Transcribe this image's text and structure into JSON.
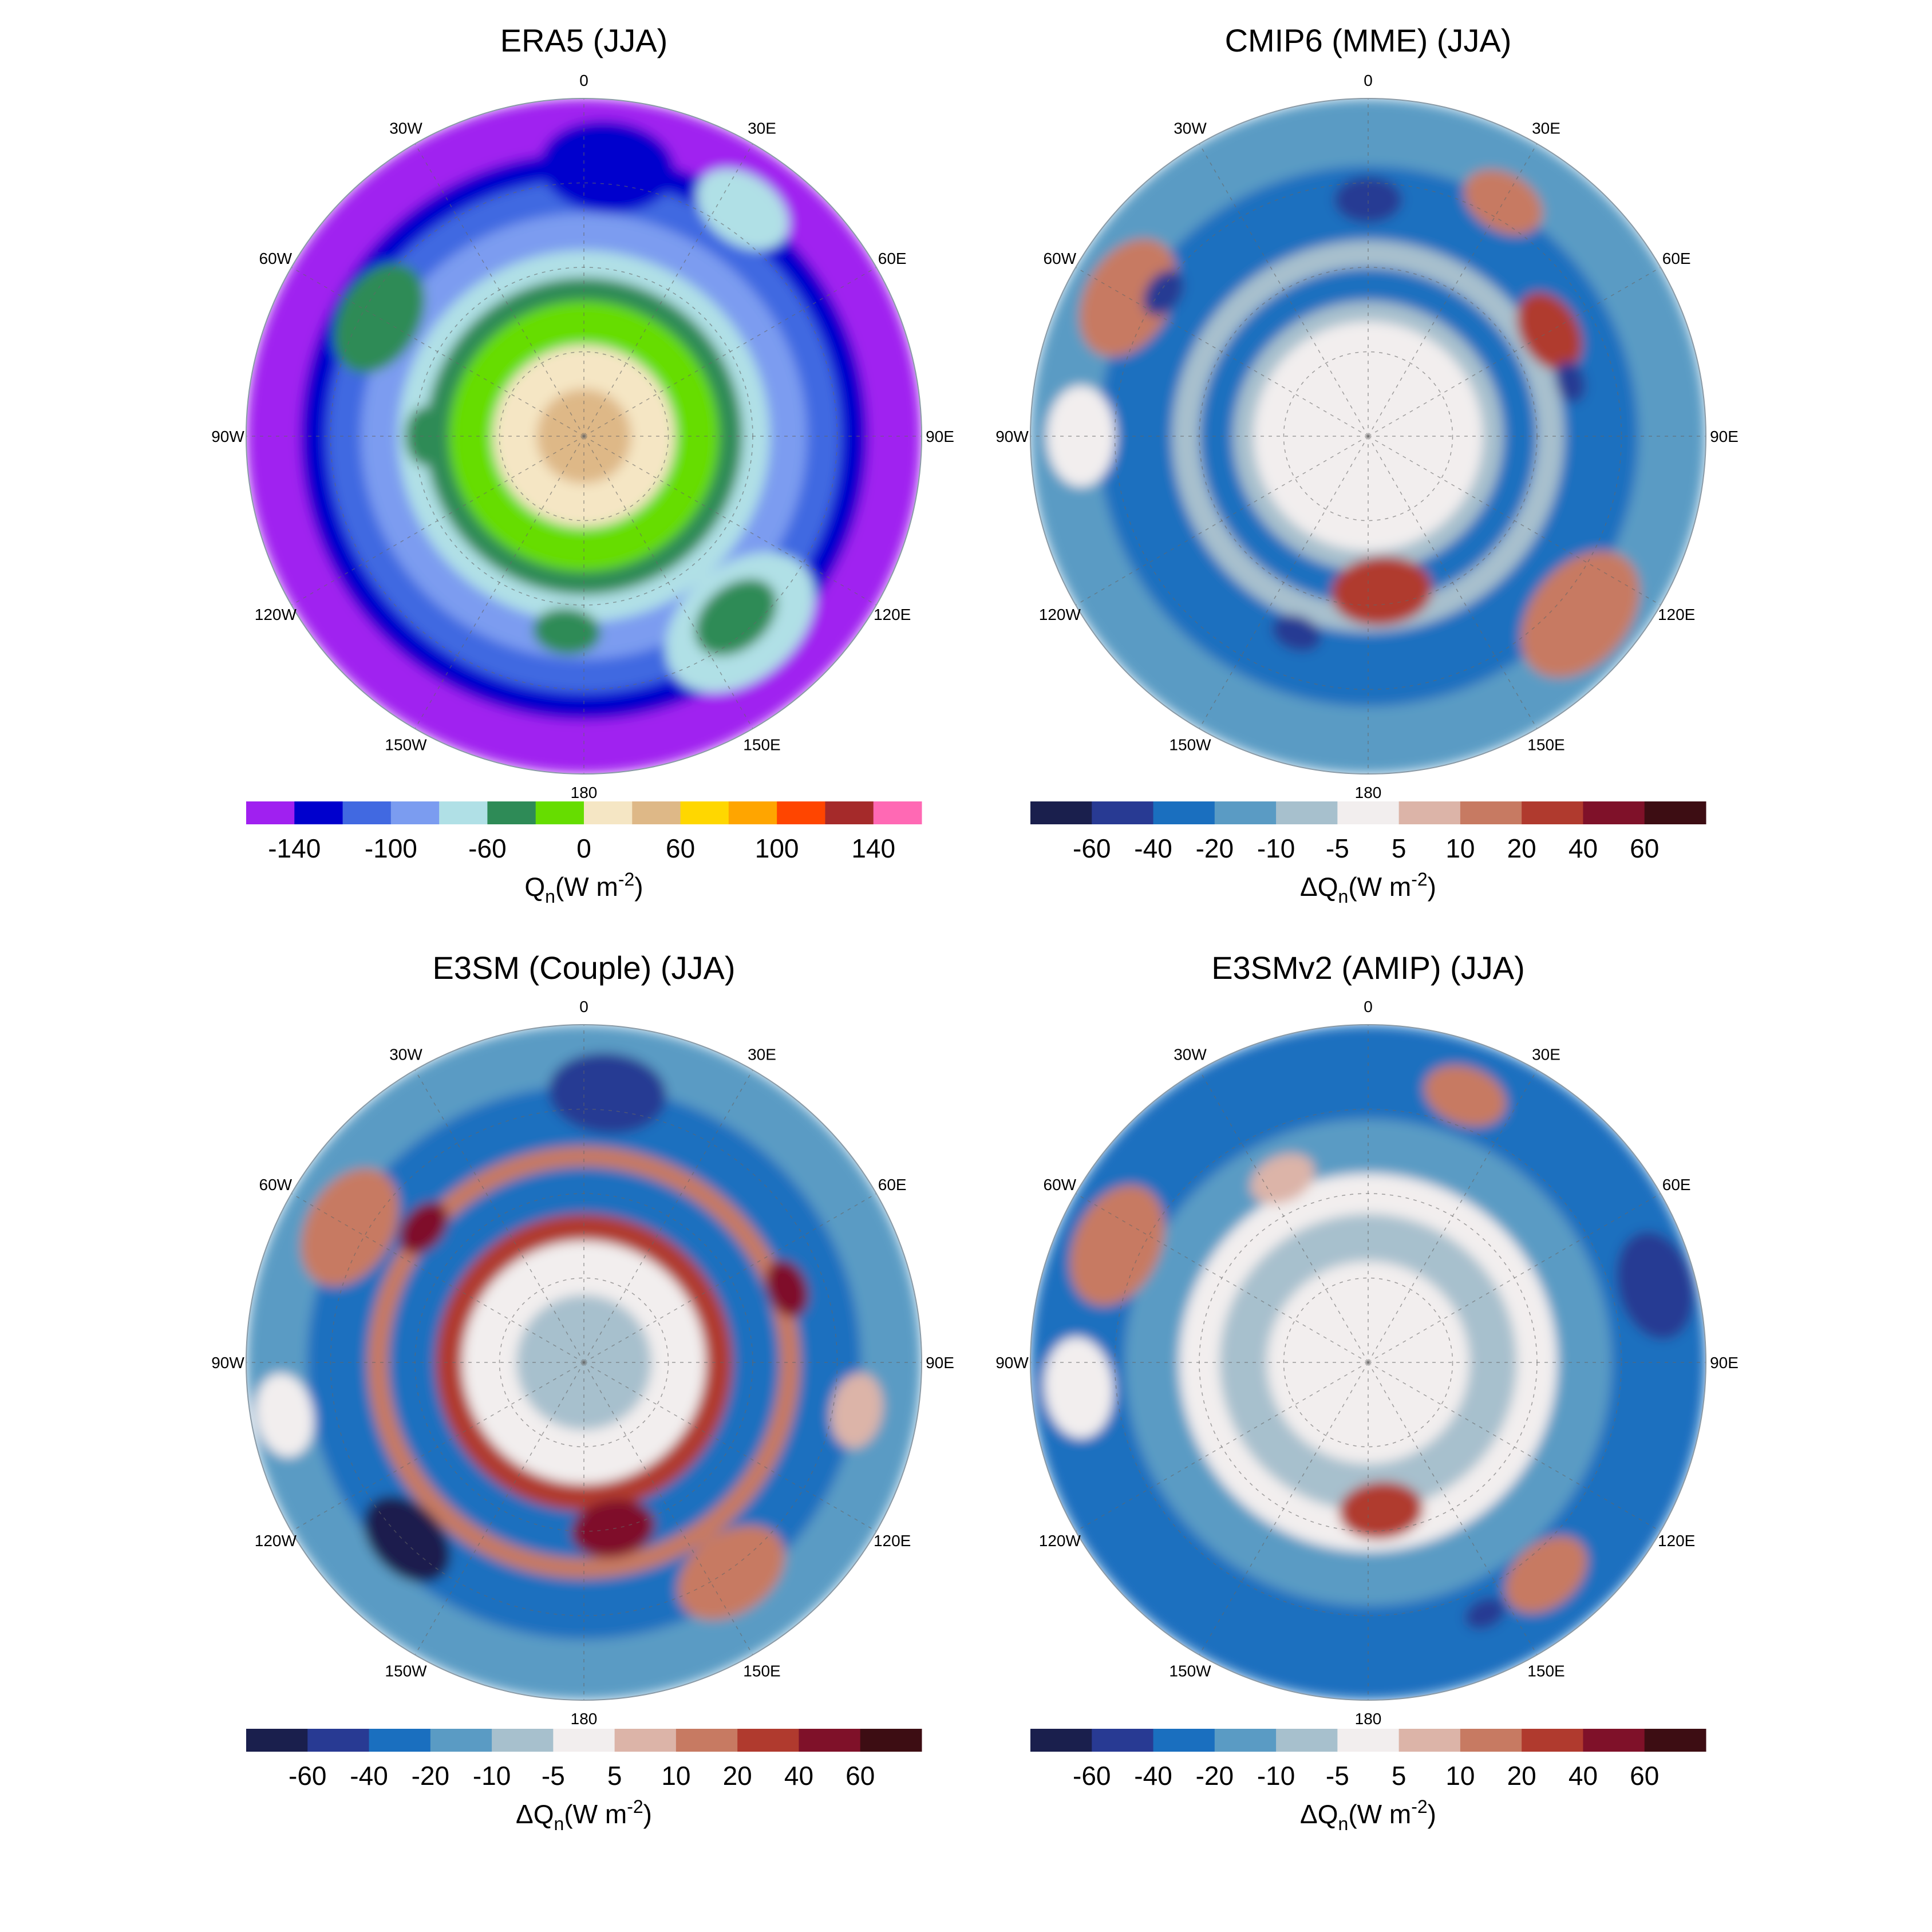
{
  "chart_data": [
    {
      "type": "heatmap",
      "projection": "south-polar-stereographic",
      "title": "ERA5  (JJA)",
      "lon_labels": [
        "0",
        "30E",
        "60E",
        "90E",
        "120E",
        "150E",
        "180",
        "150W",
        "120W",
        "90W",
        "60W",
        "30W"
      ],
      "colorbar": {
        "colors": [
          "#a020f0",
          "#0000cd",
          "#4169e1",
          "#7b9cf0",
          "#b0e0e6",
          "#2e8b57",
          "#66dd00",
          "#f5e6c4",
          "#deb887",
          "#ffd700",
          "#ffa500",
          "#ff4500",
          "#a52a2a",
          "#ff69b4"
        ],
        "tick_labels": [
          "-140",
          "-100",
          "-60",
          "0",
          "60",
          "100",
          "140"
        ],
        "tick_after": [
          1,
          3,
          5,
          7,
          9,
          11,
          13
        ],
        "label_main": "Q",
        "label_sub": "n",
        "label_units": "(W m",
        "label_sup": "-2",
        "label_close": ")"
      },
      "field": {
        "rings": [
          {
            "r": 1.0,
            "color": "#a020f0"
          },
          {
            "r": 0.84,
            "color": "#0000cd"
          },
          {
            "r": 0.76,
            "color": "#4169e1"
          },
          {
            "r": 0.66,
            "color": "#7b9cf0"
          },
          {
            "r": 0.55,
            "color": "#b0e0e6"
          },
          {
            "r": 0.47,
            "color": "#2e8b57"
          },
          {
            "r": 0.4,
            "color": "#66dd00"
          },
          {
            "r": 0.27,
            "color": "#f5e6c4"
          },
          {
            "r": 0.14,
            "color": "#deb887"
          }
        ],
        "blobs": [
          {
            "a": 5,
            "d": 0.8,
            "s": 0.16,
            "color": "#0000cd"
          },
          {
            "a": 35,
            "d": 0.82,
            "s": 0.12,
            "color": "#b0e0e6"
          },
          {
            "a": 140,
            "d": 0.72,
            "s": 0.2,
            "color": "#b0e0e6"
          },
          {
            "a": 140,
            "d": 0.7,
            "s": 0.11,
            "color": "#2e8b57"
          },
          {
            "a": 300,
            "d": 0.7,
            "s": 0.14,
            "color": "#2e8b57"
          },
          {
            "a": 270,
            "d": 0.47,
            "s": 0.07,
            "color": "#2e8b57"
          },
          {
            "a": 185,
            "d": 0.58,
            "s": 0.08,
            "color": "#2e8b57"
          }
        ]
      }
    },
    {
      "type": "heatmap",
      "projection": "south-polar-stereographic",
      "title": "CMIP6 (MME)  (JJA)",
      "lon_labels": [
        "0",
        "30E",
        "60E",
        "90E",
        "120E",
        "150E",
        "180",
        "150W",
        "120W",
        "90W",
        "60W",
        "30W"
      ],
      "colorbar": {
        "colors": [
          "#1a1f4d",
          "#283a93",
          "#1a6fbf",
          "#5a9bc4",
          "#a7c0cd",
          "#f2eeee",
          "#dcb4a8",
          "#c77a62",
          "#b03a2e",
          "#7f1129",
          "#3d0d13"
        ],
        "tick_labels": [
          "-60",
          "-40",
          "-20",
          "-10",
          "-5",
          "5",
          "10",
          "20",
          "40",
          "60"
        ],
        "tick_after": [
          1,
          2,
          3,
          4,
          5,
          6,
          7,
          8,
          9,
          10
        ],
        "label_main": "ΔQ",
        "label_sub": "n",
        "label_units": "(W m",
        "label_sup": "-2",
        "label_close": ")"
      },
      "field": {
        "rings": [
          {
            "r": 1.0,
            "color": "#5a9bc4"
          },
          {
            "r": 0.8,
            "color": "#1a6fbf"
          },
          {
            "r": 0.58,
            "color": "#a7c0cd"
          },
          {
            "r": 0.5,
            "color": "#1a6fbf"
          },
          {
            "r": 0.4,
            "color": "#a7c0cd"
          },
          {
            "r": 0.34,
            "color": "#f2eeee"
          }
        ],
        "blobs": [
          {
            "a": 300,
            "d": 0.82,
            "s": 0.15,
            "color": "#c77a62"
          },
          {
            "a": 305,
            "d": 0.74,
            "s": 0.06,
            "color": "#283a93"
          },
          {
            "a": 30,
            "d": 0.8,
            "s": 0.1,
            "color": "#c77a62"
          },
          {
            "a": 60,
            "d": 0.62,
            "s": 0.1,
            "color": "#b03a2e"
          },
          {
            "a": 75,
            "d": 0.62,
            "s": 0.05,
            "color": "#283a93"
          },
          {
            "a": 130,
            "d": 0.82,
            "s": 0.17,
            "color": "#c77a62"
          },
          {
            "a": 175,
            "d": 0.46,
            "s": 0.12,
            "color": "#b03a2e"
          },
          {
            "a": 200,
            "d": 0.62,
            "s": 0.06,
            "color": "#283a93"
          },
          {
            "a": 270,
            "d": 0.85,
            "s": 0.12,
            "color": "#f2eeee"
          },
          {
            "a": 0,
            "d": 0.7,
            "s": 0.08,
            "color": "#283a93"
          }
        ]
      }
    },
    {
      "type": "heatmap",
      "projection": "south-polar-stereographic",
      "title": "E3SM (Couple)  (JJA)",
      "lon_labels": [
        "0",
        "30E",
        "60E",
        "90E",
        "120E",
        "150E",
        "180",
        "150W",
        "120W",
        "90W",
        "60W",
        "30W"
      ],
      "colorbar": {
        "colors": [
          "#1a1f4d",
          "#283a93",
          "#1a6fbf",
          "#5a9bc4",
          "#a7c0cd",
          "#f2eeee",
          "#dcb4a8",
          "#c77a62",
          "#b03a2e",
          "#7f1129",
          "#3d0d13"
        ],
        "tick_labels": [
          "-60",
          "-40",
          "-20",
          "-10",
          "-5",
          "5",
          "10",
          "20",
          "40",
          "60"
        ],
        "tick_after": [
          1,
          2,
          3,
          4,
          5,
          6,
          7,
          8,
          9,
          10
        ],
        "label_main": "ΔQ",
        "label_sub": "n",
        "label_units": "(W m",
        "label_sup": "-2",
        "label_close": ")"
      },
      "field": {
        "rings": [
          {
            "r": 1.0,
            "color": "#5a9bc4"
          },
          {
            "r": 0.82,
            "color": "#1a6fbf"
          },
          {
            "r": 0.64,
            "color": "#c77a62"
          },
          {
            "r": 0.58,
            "color": "#1a6fbf"
          },
          {
            "r": 0.44,
            "color": "#b03a2e"
          },
          {
            "r": 0.36,
            "color": "#f2eeee"
          },
          {
            "r": 0.2,
            "color": "#a7c0cd"
          }
        ],
        "blobs": [
          {
            "a": 5,
            "d": 0.8,
            "s": 0.14,
            "color": "#283a93"
          },
          {
            "a": 300,
            "d": 0.8,
            "s": 0.15,
            "color": "#c77a62"
          },
          {
            "a": 310,
            "d": 0.62,
            "s": 0.07,
            "color": "#7f1129"
          },
          {
            "a": 70,
            "d": 0.64,
            "s": 0.07,
            "color": "#7f1129"
          },
          {
            "a": 225,
            "d": 0.74,
            "s": 0.12,
            "color": "#1a1f4d"
          },
          {
            "a": 170,
            "d": 0.5,
            "s": 0.1,
            "color": "#7f1129"
          },
          {
            "a": 145,
            "d": 0.76,
            "s": 0.14,
            "color": "#c77a62"
          },
          {
            "a": 260,
            "d": 0.9,
            "s": 0.1,
            "color": "#f2eeee"
          },
          {
            "a": 100,
            "d": 0.82,
            "s": 0.09,
            "color": "#dcb4a8"
          }
        ]
      }
    },
    {
      "type": "heatmap",
      "projection": "south-polar-stereographic",
      "title": "E3SMv2 (AMIP)  (JJA)",
      "lon_labels": [
        "0",
        "30E",
        "60E",
        "90E",
        "120E",
        "150E",
        "180",
        "150W",
        "120W",
        "90W",
        "60W",
        "30W"
      ],
      "colorbar": {
        "colors": [
          "#1a1f4d",
          "#283a93",
          "#1a6fbf",
          "#5a9bc4",
          "#a7c0cd",
          "#f2eeee",
          "#dcb4a8",
          "#c77a62",
          "#b03a2e",
          "#7f1129",
          "#3d0d13"
        ],
        "tick_labels": [
          "-60",
          "-40",
          "-20",
          "-10",
          "-5",
          "5",
          "10",
          "20",
          "40",
          "60"
        ],
        "tick_after": [
          1,
          2,
          3,
          4,
          5,
          6,
          7,
          8,
          9,
          10
        ],
        "label_main": "ΔQ",
        "label_sub": "n",
        "label_units": "(W m",
        "label_sup": "-2",
        "label_close": ")"
      },
      "field": {
        "rings": [
          {
            "r": 1.0,
            "color": "#1a6fbf"
          },
          {
            "r": 0.72,
            "color": "#5a9bc4"
          },
          {
            "r": 0.56,
            "color": "#f2eeee"
          },
          {
            "r": 0.44,
            "color": "#a7c0cd"
          },
          {
            "r": 0.3,
            "color": "#f2eeee"
          }
        ],
        "blobs": [
          {
            "a": 295,
            "d": 0.82,
            "s": 0.15,
            "color": "#c77a62"
          },
          {
            "a": 20,
            "d": 0.84,
            "s": 0.1,
            "color": "#c77a62"
          },
          {
            "a": 75,
            "d": 0.88,
            "s": 0.13,
            "color": "#283a93"
          },
          {
            "a": 140,
            "d": 0.82,
            "s": 0.11,
            "color": "#c77a62"
          },
          {
            "a": 155,
            "d": 0.82,
            "s": 0.05,
            "color": "#283a93"
          },
          {
            "a": 175,
            "d": 0.44,
            "s": 0.1,
            "color": "#b03a2e"
          },
          {
            "a": 265,
            "d": 0.86,
            "s": 0.12,
            "color": "#f2eeee"
          },
          {
            "a": 335,
            "d": 0.6,
            "s": 0.08,
            "color": "#dcb4a8"
          }
        ]
      }
    }
  ]
}
